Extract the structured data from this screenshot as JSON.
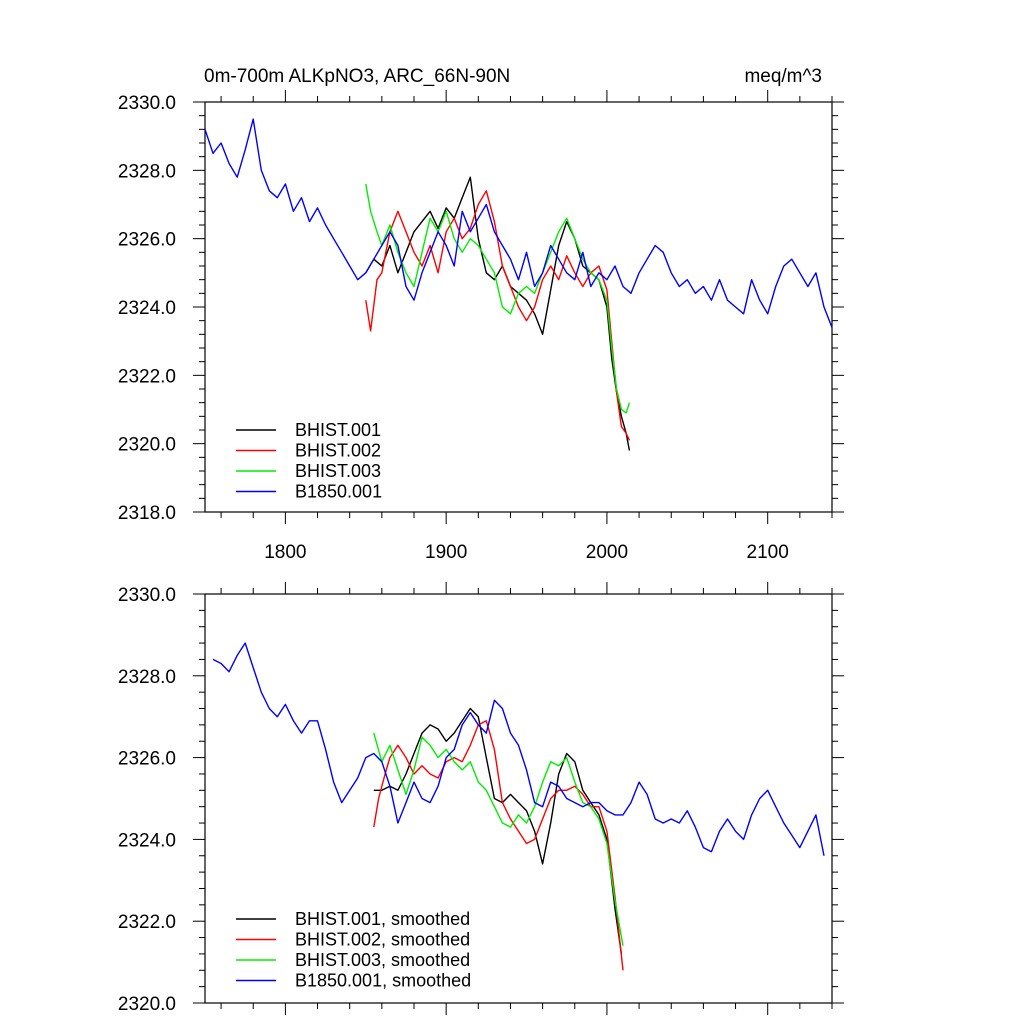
{
  "chart_data": [
    {
      "type": "line",
      "title": "0m-700m ALKpNO3, ARC_66N-90N",
      "units": "meq/m^3",
      "xlim": [
        1750,
        2140
      ],
      "ylim": [
        2318,
        2330
      ],
      "x_ticks": [
        1800,
        1900,
        2000,
        2100
      ],
      "x_tick_labels": [
        "1800",
        "1900",
        "2000",
        "2100"
      ],
      "y_ticks": [
        2318,
        2320,
        2322,
        2324,
        2326,
        2328,
        2330
      ],
      "y_tick_labels": [
        "2318.0",
        "2320.0",
        "2322.0",
        "2324.0",
        "2326.0",
        "2328.0",
        "2330.0"
      ],
      "legend_position": "bottom-left",
      "series": [
        {
          "name": "BHIST.001",
          "color": "#000000",
          "x": [
            1850,
            1855,
            1860,
            1865,
            1870,
            1875,
            1880,
            1885,
            1890,
            1895,
            1900,
            1905,
            1910,
            1915,
            1920,
            1925,
            1930,
            1935,
            1940,
            1945,
            1950,
            1955,
            1960,
            1965,
            1970,
            1975,
            1980,
            1985,
            1990,
            1995,
            2000,
            2003,
            2006,
            2009,
            2012,
            2014
          ],
          "y": [
            2325.0,
            2325.4,
            2325.2,
            2325.8,
            2325.0,
            2325.6,
            2326.2,
            2326.5,
            2326.8,
            2326.3,
            2326.9,
            2326.6,
            2327.2,
            2327.8,
            2326.0,
            2325.0,
            2324.8,
            2325.2,
            2324.6,
            2324.4,
            2324.2,
            2323.8,
            2323.2,
            2324.5,
            2325.8,
            2326.5,
            2326.0,
            2325.2,
            2325.0,
            2324.8,
            2324.0,
            2322.5,
            2321.5,
            2320.8,
            2320.3,
            2319.8
          ]
        },
        {
          "name": "BHIST.002",
          "color": "#ff0000",
          "x": [
            1850,
            1853,
            1857,
            1860,
            1865,
            1870,
            1875,
            1880,
            1885,
            1890,
            1895,
            1900,
            1905,
            1910,
            1915,
            1920,
            1925,
            1930,
            1935,
            1940,
            1945,
            1950,
            1955,
            1960,
            1965,
            1970,
            1975,
            1980,
            1985,
            1990,
            1995,
            2000,
            2003,
            2006,
            2009,
            2012,
            2014
          ],
          "y": [
            2324.2,
            2323.3,
            2324.8,
            2325.0,
            2326.2,
            2326.8,
            2326.2,
            2325.6,
            2325.2,
            2325.8,
            2325.0,
            2326.2,
            2326.6,
            2326.0,
            2326.3,
            2327.0,
            2327.4,
            2326.5,
            2325.2,
            2324.6,
            2324.0,
            2323.6,
            2324.0,
            2324.8,
            2325.2,
            2324.8,
            2325.5,
            2325.0,
            2324.6,
            2325.0,
            2325.2,
            2324.5,
            2323.0,
            2321.5,
            2320.5,
            2320.3,
            2320.1
          ]
        },
        {
          "name": "BHIST.003",
          "color": "#00ee00",
          "x": [
            1850,
            1853,
            1857,
            1860,
            1865,
            1870,
            1875,
            1880,
            1885,
            1890,
            1895,
            1900,
            1905,
            1910,
            1915,
            1920,
            1925,
            1930,
            1935,
            1940,
            1945,
            1950,
            1955,
            1960,
            1965,
            1970,
            1975,
            1980,
            1985,
            1990,
            1995,
            2000,
            2003,
            2006,
            2009,
            2012,
            2014
          ],
          "y": [
            2327.6,
            2326.8,
            2326.2,
            2325.8,
            2326.4,
            2325.6,
            2325.0,
            2324.6,
            2325.6,
            2326.6,
            2326.2,
            2326.8,
            2326.0,
            2325.6,
            2326.0,
            2325.8,
            2325.4,
            2325.0,
            2324.0,
            2323.8,
            2324.4,
            2324.6,
            2324.4,
            2325.0,
            2325.6,
            2326.2,
            2326.6,
            2326.0,
            2325.4,
            2325.0,
            2324.8,
            2324.2,
            2322.8,
            2321.6,
            2321.0,
            2320.9,
            2321.2
          ]
        },
        {
          "name": "B1850.001",
          "color": "#0000ff",
          "x": [
            1750,
            1755,
            1760,
            1765,
            1770,
            1775,
            1780,
            1785,
            1790,
            1795,
            1800,
            1805,
            1810,
            1815,
            1820,
            1825,
            1830,
            1835,
            1840,
            1845,
            1850,
            1855,
            1860,
            1865,
            1870,
            1875,
            1880,
            1885,
            1890,
            1895,
            1900,
            1905,
            1910,
            1915,
            1920,
            1925,
            1930,
            1935,
            1940,
            1945,
            1950,
            1955,
            1960,
            1965,
            1970,
            1975,
            1980,
            1985,
            1990,
            1995,
            2000,
            2005,
            2010,
            2015,
            2020,
            2025,
            2030,
            2035,
            2040,
            2045,
            2050,
            2055,
            2060,
            2065,
            2070,
            2075,
            2080,
            2085,
            2090,
            2095,
            2100,
            2105,
            2110,
            2115,
            2120,
            2125,
            2130,
            2135,
            2140
          ],
          "y": [
            2329.2,
            2328.5,
            2328.8,
            2328.2,
            2327.8,
            2328.6,
            2329.5,
            2328.0,
            2327.4,
            2327.2,
            2327.6,
            2326.8,
            2327.2,
            2326.5,
            2326.9,
            2326.4,
            2326.0,
            2325.6,
            2325.2,
            2324.8,
            2325.0,
            2325.4,
            2325.8,
            2326.2,
            2325.8,
            2324.6,
            2324.2,
            2325.0,
            2325.6,
            2326.2,
            2325.8,
            2325.2,
            2326.8,
            2326.2,
            2326.6,
            2327.0,
            2326.2,
            2325.8,
            2325.4,
            2324.8,
            2325.6,
            2324.6,
            2325.0,
            2325.8,
            2325.4,
            2325.0,
            2324.8,
            2325.6,
            2324.6,
            2325.0,
            2324.8,
            2325.2,
            2324.6,
            2324.4,
            2325.0,
            2325.4,
            2325.8,
            2325.6,
            2325.0,
            2324.6,
            2324.8,
            2324.4,
            2324.6,
            2324.2,
            2324.8,
            2324.2,
            2324.0,
            2323.8,
            2324.8,
            2324.2,
            2323.8,
            2324.6,
            2325.2,
            2325.4,
            2325.0,
            2324.6,
            2325.0,
            2324.0,
            2323.4
          ]
        }
      ]
    },
    {
      "type": "line",
      "title": "",
      "xlim": [
        1750,
        2140
      ],
      "ylim": [
        2320,
        2330
      ],
      "x_ticks": [
        1800,
        1900,
        2000,
        2100
      ],
      "y_ticks": [
        2320,
        2322,
        2324,
        2326,
        2328,
        2330
      ],
      "y_tick_labels": [
        "2320.0",
        "2322.0",
        "2324.0",
        "2326.0",
        "2328.0",
        "2330.0"
      ],
      "legend_position": "bottom-left",
      "series": [
        {
          "name": "BHIST.001, smoothed",
          "color": "#000000",
          "x": [
            1855,
            1860,
            1865,
            1870,
            1875,
            1880,
            1885,
            1890,
            1895,
            1900,
            1905,
            1910,
            1915,
            1920,
            1925,
            1930,
            1935,
            1940,
            1945,
            1950,
            1955,
            1960,
            1965,
            1970,
            1975,
            1980,
            1985,
            1990,
            1995,
            2000,
            2005,
            2009
          ],
          "y": [
            2325.2,
            2325.2,
            2325.3,
            2325.2,
            2325.6,
            2326.1,
            2326.6,
            2326.8,
            2326.7,
            2326.4,
            2326.6,
            2326.9,
            2327.2,
            2327.0,
            2326.0,
            2325.0,
            2324.9,
            2325.1,
            2324.9,
            2324.7,
            2324.2,
            2323.4,
            2324.4,
            2325.6,
            2326.1,
            2325.9,
            2325.2,
            2324.9,
            2324.6,
            2324.0,
            2322.3,
            2321.2
          ]
        },
        {
          "name": "BHIST.002, smoothed",
          "color": "#ff0000",
          "x": [
            1855,
            1858,
            1862,
            1865,
            1870,
            1875,
            1880,
            1885,
            1890,
            1895,
            1900,
            1905,
            1910,
            1915,
            1920,
            1925,
            1930,
            1935,
            1940,
            1945,
            1950,
            1955,
            1960,
            1965,
            1970,
            1975,
            1980,
            1985,
            1990,
            1995,
            2000,
            2005,
            2010
          ],
          "y": [
            2324.3,
            2325.0,
            2325.6,
            2326.0,
            2326.3,
            2326.0,
            2325.6,
            2325.8,
            2325.6,
            2325.5,
            2325.9,
            2326.0,
            2325.9,
            2326.3,
            2326.8,
            2326.9,
            2326.2,
            2324.9,
            2324.5,
            2324.2,
            2323.9,
            2324.0,
            2324.5,
            2325.0,
            2325.2,
            2325.2,
            2325.3,
            2325.1,
            2324.8,
            2324.8,
            2324.2,
            2322.6,
            2320.8
          ]
        },
        {
          "name": "BHIST.003, smoothed",
          "color": "#00ee00",
          "x": [
            1855,
            1860,
            1865,
            1870,
            1875,
            1880,
            1885,
            1890,
            1895,
            1900,
            1905,
            1910,
            1915,
            1920,
            1925,
            1930,
            1935,
            1940,
            1945,
            1950,
            1955,
            1960,
            1965,
            1970,
            1975,
            1980,
            1985,
            1990,
            1995,
            2000,
            2005,
            2010
          ],
          "y": [
            2326.6,
            2325.9,
            2326.3,
            2325.7,
            2325.1,
            2325.7,
            2326.5,
            2326.3,
            2326.0,
            2326.2,
            2325.9,
            2325.7,
            2325.9,
            2325.4,
            2325.2,
            2324.8,
            2324.4,
            2324.3,
            2324.6,
            2324.4,
            2324.8,
            2325.4,
            2325.9,
            2325.8,
            2326.0,
            2325.4,
            2324.9,
            2324.8,
            2324.5,
            2323.9,
            2322.5,
            2321.4
          ]
        },
        {
          "name": "B1850.001, smoothed",
          "color": "#0000ff",
          "x": [
            1755,
            1760,
            1765,
            1770,
            1775,
            1780,
            1785,
            1790,
            1795,
            1800,
            1805,
            1810,
            1815,
            1820,
            1825,
            1830,
            1835,
            1840,
            1845,
            1850,
            1855,
            1860,
            1865,
            1870,
            1875,
            1880,
            1885,
            1890,
            1895,
            1900,
            1905,
            1910,
            1915,
            1920,
            1925,
            1930,
            1935,
            1940,
            1945,
            1950,
            1955,
            1960,
            1965,
            1970,
            1975,
            1980,
            1985,
            1990,
            1995,
            2000,
            2005,
            2010,
            2015,
            2020,
            2025,
            2030,
            2035,
            2040,
            2045,
            2050,
            2055,
            2060,
            2065,
            2070,
            2075,
            2080,
            2085,
            2090,
            2095,
            2100,
            2105,
            2110,
            2115,
            2120,
            2125,
            2130,
            2135
          ],
          "y": [
            2328.4,
            2328.3,
            2328.1,
            2328.5,
            2328.8,
            2328.2,
            2327.6,
            2327.2,
            2327.0,
            2327.3,
            2326.9,
            2326.6,
            2326.9,
            2326.9,
            2326.2,
            2325.4,
            2324.9,
            2325.2,
            2325.5,
            2326.0,
            2326.1,
            2325.9,
            2325.3,
            2324.4,
            2324.9,
            2325.4,
            2325.0,
            2324.9,
            2325.3,
            2326.0,
            2326.2,
            2326.8,
            2327.1,
            2326.8,
            2326.6,
            2327.4,
            2327.2,
            2326.6,
            2326.3,
            2325.7,
            2324.9,
            2324.8,
            2325.4,
            2325.3,
            2325.0,
            2324.9,
            2324.8,
            2324.9,
            2324.9,
            2324.7,
            2324.6,
            2324.6,
            2324.9,
            2325.4,
            2325.1,
            2324.5,
            2324.4,
            2324.5,
            2324.4,
            2324.7,
            2324.3,
            2323.8,
            2323.7,
            2324.2,
            2324.5,
            2324.2,
            2324.0,
            2324.6,
            2325.0,
            2325.2,
            2324.8,
            2324.4,
            2324.1,
            2323.8,
            2324.2,
            2324.6,
            2323.6
          ]
        }
      ]
    }
  ]
}
